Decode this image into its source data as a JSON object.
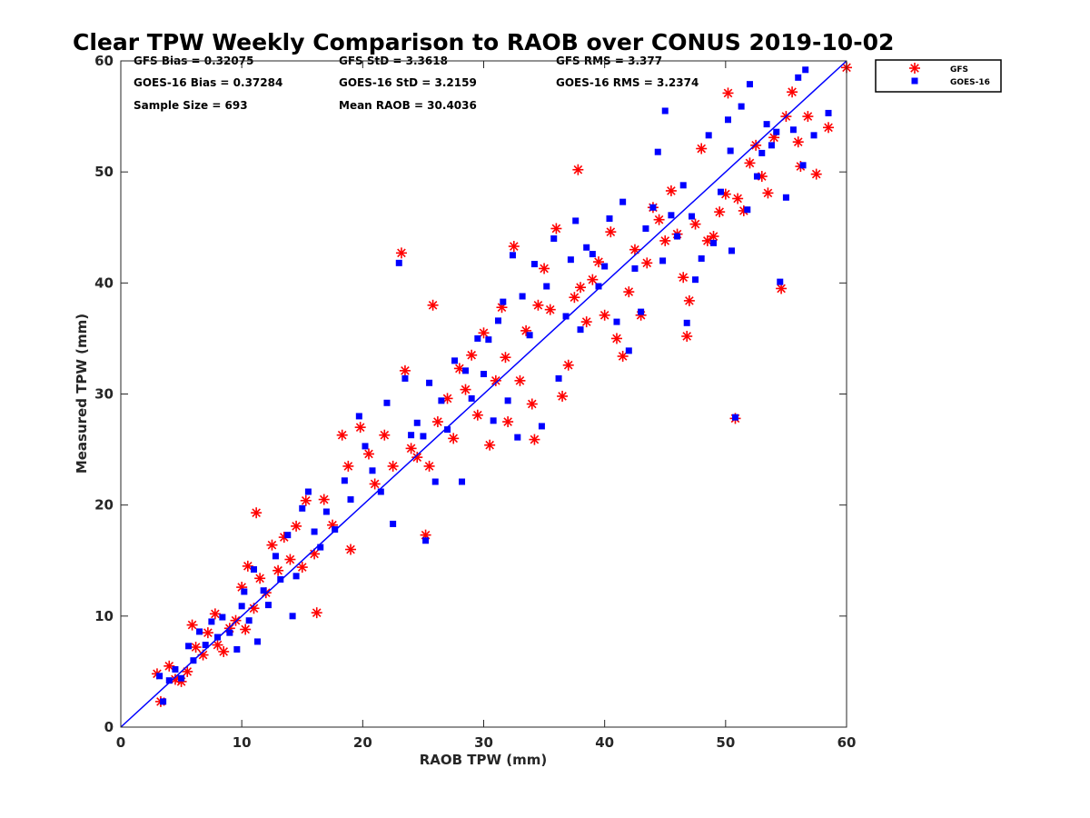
{
  "chart_data": {
    "type": "scatter",
    "title": "Clear TPW Weekly Comparison to RAOB over CONUS 2019-10-02",
    "xlabel": "RAOB TPW (mm)",
    "ylabel": "Measured TPW (mm)",
    "xlim": [
      0,
      60
    ],
    "ylim": [
      0,
      60
    ],
    "xticks": [
      "0",
      "10",
      "20",
      "30",
      "40",
      "50",
      "60"
    ],
    "yticks": [
      "0",
      "10",
      "20",
      "30",
      "40",
      "50",
      "60"
    ],
    "grid": false,
    "legend_position": "outside top-right",
    "reference_line": {
      "from": [
        0,
        0
      ],
      "to": [
        60,
        60
      ],
      "color": "#0000ff"
    },
    "stats": {
      "gfs_bias": "GFS Bias = 0.32075",
      "goes_bias": "GOES-16 Bias = 0.37284",
      "sample_size": "Sample Size = 693",
      "gfs_std": "GFS StD = 3.3618",
      "goes_std": "GOES-16 StD = 3.2159",
      "mean_raob": "Mean RAOB = 30.4036",
      "gfs_rms": "GFS RMS = 3.377",
      "goes_rms": "GOES-16 RMS = 3.2374"
    },
    "series": [
      {
        "name": "GFS",
        "color": "#ff0000",
        "marker": "asterisk",
        "points": [
          [
            3,
            4.8
          ],
          [
            3.3,
            2.3
          ],
          [
            4,
            5.5
          ],
          [
            4.5,
            4.3
          ],
          [
            5,
            4.1
          ],
          [
            5.5,
            5
          ],
          [
            5.9,
            9.2
          ],
          [
            6.2,
            7.2
          ],
          [
            6.8,
            6.5
          ],
          [
            7.2,
            8.5
          ],
          [
            7.8,
            10.2
          ],
          [
            8,
            7.4
          ],
          [
            8.5,
            6.8
          ],
          [
            9,
            8.9
          ],
          [
            9.5,
            9.6
          ],
          [
            10,
            12.6
          ],
          [
            10.3,
            8.8
          ],
          [
            10.5,
            14.5
          ],
          [
            11,
            10.7
          ],
          [
            11.2,
            19.3
          ],
          [
            11.5,
            13.4
          ],
          [
            12,
            12.1
          ],
          [
            12.5,
            16.4
          ],
          [
            13,
            14.1
          ],
          [
            13.5,
            17.1
          ],
          [
            14,
            15.1
          ],
          [
            14.5,
            18.1
          ],
          [
            15,
            14.4
          ],
          [
            15.3,
            20.4
          ],
          [
            16,
            15.6
          ],
          [
            16.2,
            10.3
          ],
          [
            16.8,
            20.5
          ],
          [
            17.5,
            18.2
          ],
          [
            18.3,
            26.3
          ],
          [
            18.8,
            23.5
          ],
          [
            19,
            16
          ],
          [
            19.8,
            27
          ],
          [
            20.5,
            24.6
          ],
          [
            21,
            21.9
          ],
          [
            21.8,
            26.3
          ],
          [
            22.5,
            23.5
          ],
          [
            23.2,
            42.7
          ],
          [
            23.5,
            32.1
          ],
          [
            24,
            25.1
          ],
          [
            24.5,
            24.3
          ],
          [
            25.2,
            17.3
          ],
          [
            25.5,
            23.5
          ],
          [
            25.8,
            38
          ],
          [
            26.2,
            27.5
          ],
          [
            27,
            29.6
          ],
          [
            27.5,
            26
          ],
          [
            28,
            32.3
          ],
          [
            28.5,
            30.4
          ],
          [
            29,
            33.5
          ],
          [
            29.5,
            28.1
          ],
          [
            30,
            35.5
          ],
          [
            30.5,
            25.4
          ],
          [
            31,
            31.2
          ],
          [
            31.5,
            37.8
          ],
          [
            31.8,
            33.3
          ],
          [
            32,
            27.5
          ],
          [
            32.5,
            43.3
          ],
          [
            33,
            31.2
          ],
          [
            33.5,
            35.7
          ],
          [
            34,
            29.1
          ],
          [
            34.2,
            25.9
          ],
          [
            34.5,
            38
          ],
          [
            35,
            41.3
          ],
          [
            35.5,
            37.6
          ],
          [
            36,
            44.9
          ],
          [
            36.5,
            29.8
          ],
          [
            37,
            32.6
          ],
          [
            37.5,
            38.7
          ],
          [
            37.8,
            50.2
          ],
          [
            38,
            39.6
          ],
          [
            38.5,
            36.5
          ],
          [
            39,
            40.3
          ],
          [
            39.5,
            41.9
          ],
          [
            40,
            37.1
          ],
          [
            40.5,
            44.6
          ],
          [
            41,
            35
          ],
          [
            41.5,
            33.4
          ],
          [
            42,
            39.2
          ],
          [
            42.5,
            43
          ],
          [
            43,
            37.1
          ],
          [
            43.5,
            41.8
          ],
          [
            44,
            46.8
          ],
          [
            44.5,
            45.7
          ],
          [
            45,
            43.8
          ],
          [
            45.5,
            48.3
          ],
          [
            46,
            44.4
          ],
          [
            46.5,
            40.5
          ],
          [
            46.8,
            35.2
          ],
          [
            47,
            38.4
          ],
          [
            47.5,
            45.3
          ],
          [
            48,
            52.1
          ],
          [
            48.5,
            43.8
          ],
          [
            49,
            44.2
          ],
          [
            49.5,
            46.4
          ],
          [
            50,
            48
          ],
          [
            50.2,
            57.1
          ],
          [
            50.8,
            27.8
          ],
          [
            51,
            47.6
          ],
          [
            51.5,
            46.5
          ],
          [
            52,
            50.8
          ],
          [
            52.5,
            52.4
          ],
          [
            53,
            49.6
          ],
          [
            53.5,
            48.1
          ],
          [
            54,
            53.1
          ],
          [
            54.6,
            39.5
          ],
          [
            55,
            55
          ],
          [
            55.5,
            57.2
          ],
          [
            56,
            52.7
          ],
          [
            56.2,
            50.5
          ],
          [
            56.8,
            55
          ],
          [
            57.5,
            49.8
          ],
          [
            58.5,
            54
          ],
          [
            60,
            59.4
          ]
        ]
      },
      {
        "name": "GOES-16",
        "color": "#0000ff",
        "marker": "square",
        "points": [
          [
            3.2,
            4.6
          ],
          [
            3.5,
            2.3
          ],
          [
            4,
            4.2
          ],
          [
            4.5,
            5.2
          ],
          [
            5,
            4.4
          ],
          [
            5.6,
            7.3
          ],
          [
            6,
            6
          ],
          [
            6.5,
            8.6
          ],
          [
            7,
            7.4
          ],
          [
            7.5,
            9.5
          ],
          [
            8,
            8.1
          ],
          [
            8.4,
            9.9
          ],
          [
            9,
            8.5
          ],
          [
            9.6,
            7
          ],
          [
            10,
            10.9
          ],
          [
            10.2,
            12.2
          ],
          [
            10.6,
            9.6
          ],
          [
            11,
            14.2
          ],
          [
            11.3,
            7.7
          ],
          [
            11.8,
            12.3
          ],
          [
            12.2,
            11
          ],
          [
            12.8,
            15.4
          ],
          [
            13.2,
            13.3
          ],
          [
            13.8,
            17.3
          ],
          [
            14.2,
            10
          ],
          [
            14.5,
            13.6
          ],
          [
            15,
            19.7
          ],
          [
            15.5,
            21.2
          ],
          [
            16,
            17.6
          ],
          [
            16.5,
            16.2
          ],
          [
            17,
            19.4
          ],
          [
            17.7,
            17.8
          ],
          [
            18.5,
            22.2
          ],
          [
            19,
            20.5
          ],
          [
            19.7,
            28
          ],
          [
            20.2,
            25.3
          ],
          [
            20.8,
            23.1
          ],
          [
            21.5,
            21.2
          ],
          [
            22,
            29.2
          ],
          [
            22.5,
            18.3
          ],
          [
            23,
            41.8
          ],
          [
            23.5,
            31.4
          ],
          [
            24,
            26.3
          ],
          [
            24.5,
            27.4
          ],
          [
            25,
            26.2
          ],
          [
            25.2,
            16.8
          ],
          [
            25.5,
            31
          ],
          [
            26,
            22.1
          ],
          [
            26.5,
            29.4
          ],
          [
            27,
            26.8
          ],
          [
            27.6,
            33
          ],
          [
            28.2,
            22.1
          ],
          [
            28.5,
            32.1
          ],
          [
            29,
            29.6
          ],
          [
            29.5,
            35
          ],
          [
            30,
            31.8
          ],
          [
            30.4,
            34.9
          ],
          [
            30.8,
            27.6
          ],
          [
            31.2,
            36.6
          ],
          [
            31.6,
            38.3
          ],
          [
            32,
            29.4
          ],
          [
            32.4,
            42.5
          ],
          [
            32.8,
            26.1
          ],
          [
            33.2,
            38.8
          ],
          [
            33.8,
            35.3
          ],
          [
            34.2,
            41.7
          ],
          [
            34.8,
            27.1
          ],
          [
            35.2,
            39.7
          ],
          [
            35.8,
            44
          ],
          [
            36.2,
            31.4
          ],
          [
            36.8,
            37
          ],
          [
            37.2,
            42.1
          ],
          [
            37.6,
            45.6
          ],
          [
            38,
            35.8
          ],
          [
            38.5,
            43.2
          ],
          [
            39,
            42.6
          ],
          [
            39.5,
            39.7
          ],
          [
            40,
            41.5
          ],
          [
            40.4,
            45.8
          ],
          [
            41,
            36.5
          ],
          [
            41.5,
            47.3
          ],
          [
            42,
            33.9
          ],
          [
            42.5,
            41.3
          ],
          [
            43,
            37.4
          ],
          [
            43.4,
            44.9
          ],
          [
            44,
            46.8
          ],
          [
            44.4,
            51.8
          ],
          [
            44.8,
            42
          ],
          [
            45,
            55.5
          ],
          [
            45.5,
            46.1
          ],
          [
            46,
            44.2
          ],
          [
            46.5,
            48.8
          ],
          [
            46.8,
            36.4
          ],
          [
            47.2,
            46
          ],
          [
            47.5,
            40.3
          ],
          [
            48,
            42.2
          ],
          [
            48.6,
            53.3
          ],
          [
            49,
            43.6
          ],
          [
            49.6,
            48.2
          ],
          [
            50.2,
            54.7
          ],
          [
            50.4,
            51.9
          ],
          [
            50.5,
            42.9
          ],
          [
            50.8,
            27.9
          ],
          [
            51.3,
            55.9
          ],
          [
            51.8,
            46.6
          ],
          [
            52,
            57.9
          ],
          [
            52.6,
            49.6
          ],
          [
            53,
            51.7
          ],
          [
            53.4,
            54.3
          ],
          [
            53.8,
            52.4
          ],
          [
            54.2,
            53.6
          ],
          [
            54.5,
            40.1
          ],
          [
            55,
            47.7
          ],
          [
            55.6,
            53.8
          ],
          [
            56,
            58.5
          ],
          [
            56.4,
            50.6
          ],
          [
            56.6,
            59.2
          ],
          [
            57.3,
            53.3
          ],
          [
            58.5,
            55.3
          ]
        ]
      }
    ]
  }
}
